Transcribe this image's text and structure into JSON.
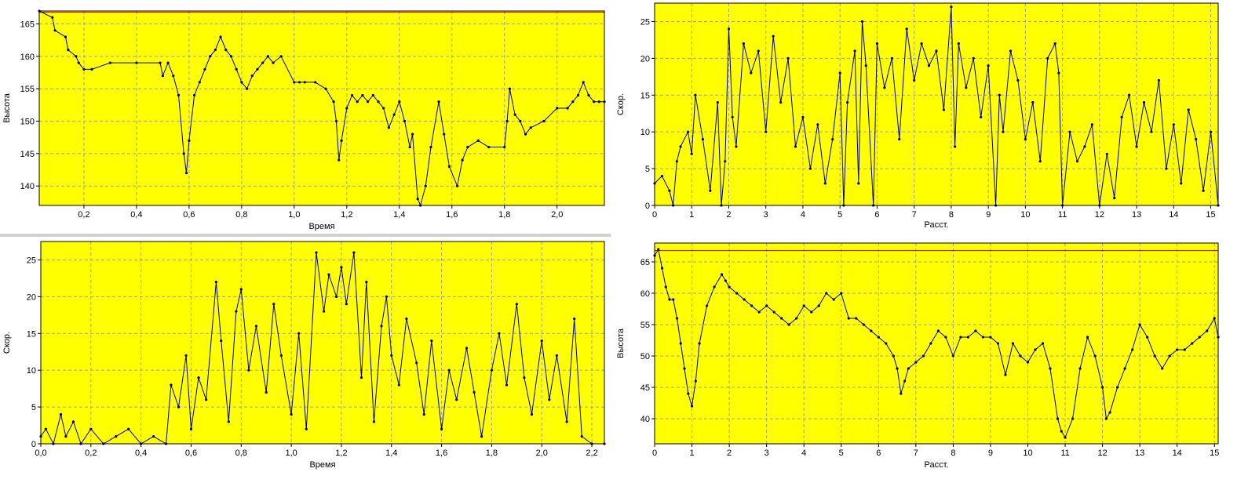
{
  "chart_data": [
    {
      "id": "c1",
      "type": "line",
      "xlabel": "Время",
      "ylabel": "Высота",
      "xlim": [
        0.03,
        2.18
      ],
      "ylim": [
        137,
        167
      ],
      "xticks": [
        "0,2",
        "0,4",
        "0,6",
        "0,8",
        "1,0",
        "1,2",
        "1,4",
        "1,6",
        "1,8",
        "2,0"
      ],
      "xtick_values": [
        0.2,
        0.4,
        0.6,
        0.8,
        1.0,
        1.2,
        1.4,
        1.6,
        1.8,
        2.0
      ],
      "yticks": [
        "140",
        "145",
        "150",
        "155",
        "160",
        "165"
      ],
      "ytick_values": [
        140,
        145,
        150,
        155,
        160,
        165
      ],
      "ref_line": 166.8,
      "grid": true,
      "series": [
        {
          "x": [
            0.03,
            0.08,
            0.09,
            0.13,
            0.14,
            0.17,
            0.18,
            0.2,
            0.23,
            0.3,
            0.4,
            0.49,
            0.5,
            0.52,
            0.54,
            0.56,
            0.58,
            0.59,
            0.6,
            0.62,
            0.64,
            0.66,
            0.68,
            0.7,
            0.72,
            0.74,
            0.76,
            0.78,
            0.8,
            0.82,
            0.84,
            0.86,
            0.88,
            0.9,
            0.92,
            0.95,
            1.0,
            1.02,
            1.04,
            1.08,
            1.12,
            1.15,
            1.16,
            1.17,
            1.18,
            1.2,
            1.22,
            1.24,
            1.26,
            1.28,
            1.3,
            1.32,
            1.34,
            1.36,
            1.38,
            1.4,
            1.42,
            1.44,
            1.45,
            1.47,
            1.48,
            1.5,
            1.52,
            1.55,
            1.57,
            1.59,
            1.62,
            1.64,
            1.66,
            1.7,
            1.74,
            1.8,
            1.81,
            1.82,
            1.84,
            1.86,
            1.88,
            1.9,
            1.95,
            2.0,
            2.04,
            2.06,
            2.08,
            2.1,
            2.12,
            2.14,
            2.16,
            2.18
          ],
          "y": [
            167,
            166,
            164,
            163,
            161,
            160,
            159,
            158,
            158,
            159,
            159,
            159,
            157,
            159,
            157,
            154,
            145,
            142,
            147,
            154,
            156,
            158,
            160,
            161,
            163,
            161,
            160,
            158,
            156,
            155,
            157,
            158,
            159,
            160,
            159,
            160,
            156,
            156,
            156,
            156,
            155,
            153,
            150,
            144,
            147,
            152,
            154,
            153,
            154,
            153,
            154,
            153,
            152,
            149,
            151,
            153,
            150,
            146,
            148,
            138,
            137,
            140,
            146,
            153,
            148,
            143,
            140,
            144,
            146,
            147,
            146,
            146,
            150,
            155,
            151,
            150,
            148,
            149,
            150,
            152,
            152,
            153,
            154,
            156,
            154,
            153,
            153,
            153
          ]
        }
      ]
    },
    {
      "id": "c2",
      "type": "line",
      "xlabel": "Расст.",
      "ylabel": "Скор.",
      "xlim": [
        0,
        15.2
      ],
      "ylim": [
        0,
        27.5
      ],
      "xticks": [
        "0",
        "1",
        "2",
        "3",
        "4",
        "5",
        "6",
        "7",
        "8",
        "9",
        "10",
        "11",
        "12",
        "13",
        "14",
        "15"
      ],
      "xtick_values": [
        0,
        1,
        2,
        3,
        4,
        5,
        6,
        7,
        8,
        9,
        10,
        11,
        12,
        13,
        14,
        15
      ],
      "yticks": [
        "0",
        "5",
        "10",
        "15",
        "20",
        "25"
      ],
      "ytick_values": [
        0,
        5,
        10,
        15,
        20,
        25
      ],
      "grid": true,
      "series": [
        {
          "x": [
            0,
            0.2,
            0.4,
            0.5,
            0.6,
            0.7,
            0.9,
            1.0,
            1.1,
            1.3,
            1.5,
            1.7,
            1.8,
            1.9,
            2.0,
            2.1,
            2.2,
            2.4,
            2.6,
            2.8,
            3.0,
            3.2,
            3.4,
            3.6,
            3.8,
            4.0,
            4.2,
            4.4,
            4.6,
            4.8,
            5.0,
            5.1,
            5.2,
            5.4,
            5.5,
            5.6,
            5.7,
            5.9,
            6.0,
            6.2,
            6.4,
            6.6,
            6.8,
            7.0,
            7.2,
            7.4,
            7.6,
            7.8,
            8.0,
            8.1,
            8.2,
            8.4,
            8.6,
            8.8,
            9.0,
            9.2,
            9.3,
            9.4,
            9.6,
            9.8,
            10.0,
            10.2,
            10.4,
            10.6,
            10.8,
            10.9,
            11.0,
            11.2,
            11.4,
            11.6,
            11.8,
            12.0,
            12.2,
            12.4,
            12.6,
            12.8,
            13.0,
            13.2,
            13.4,
            13.6,
            13.8,
            14.0,
            14.2,
            14.4,
            14.6,
            14.8,
            15.0,
            15.2
          ],
          "y": [
            3,
            4,
            2,
            0,
            6,
            8,
            10,
            7,
            15,
            9,
            2,
            14,
            0,
            6,
            24,
            12,
            8,
            22,
            18,
            21,
            10,
            23,
            14,
            20,
            8,
            12,
            5,
            11,
            3,
            9,
            18,
            0,
            14,
            21,
            3,
            25,
            19,
            0,
            22,
            16,
            20,
            9,
            24,
            17,
            22,
            19,
            21,
            13,
            27,
            8,
            22,
            16,
            20,
            12,
            19,
            0,
            15,
            10,
            21,
            17,
            9,
            14,
            6,
            20,
            22,
            18,
            0,
            10,
            6,
            8,
            11,
            0,
            7,
            1,
            12,
            15,
            8,
            14,
            10,
            17,
            5,
            11,
            3,
            13,
            9,
            2,
            10,
            0
          ]
        }
      ]
    },
    {
      "id": "c3",
      "type": "line",
      "xlabel": "Время",
      "ylabel": "Скор.",
      "xlim": [
        0,
        2.25
      ],
      "ylim": [
        0,
        27.5
      ],
      "xticks": [
        "0,0",
        "0,2",
        "0,4",
        "0,6",
        "0,8",
        "1,0",
        "1,2",
        "1,4",
        "1,6",
        "1,8",
        "2,0",
        "2,2"
      ],
      "xtick_values": [
        0,
        0.2,
        0.4,
        0.6,
        0.8,
        1.0,
        1.2,
        1.4,
        1.6,
        1.8,
        2.0,
        2.2
      ],
      "yticks": [
        "0",
        "5",
        "10",
        "15",
        "20",
        "25"
      ],
      "ytick_values": [
        0,
        5,
        10,
        15,
        20,
        25
      ],
      "grid": true,
      "series": [
        {
          "x": [
            0,
            0.02,
            0.05,
            0.08,
            0.1,
            0.13,
            0.16,
            0.2,
            0.25,
            0.3,
            0.35,
            0.4,
            0.45,
            0.5,
            0.52,
            0.55,
            0.58,
            0.6,
            0.63,
            0.66,
            0.7,
            0.72,
            0.75,
            0.78,
            0.8,
            0.83,
            0.86,
            0.9,
            0.93,
            0.96,
            1.0,
            1.03,
            1.06,
            1.1,
            1.13,
            1.15,
            1.18,
            1.2,
            1.22,
            1.25,
            1.28,
            1.3,
            1.33,
            1.36,
            1.38,
            1.4,
            1.43,
            1.46,
            1.5,
            1.53,
            1.56,
            1.6,
            1.63,
            1.66,
            1.7,
            1.73,
            1.76,
            1.8,
            1.83,
            1.86,
            1.9,
            1.93,
            1.96,
            2.0,
            2.03,
            2.06,
            2.1,
            2.13,
            2.16,
            2.2,
            2.25
          ],
          "y": [
            1,
            2,
            0,
            4,
            1,
            3,
            0,
            2,
            0,
            1,
            2,
            0,
            1,
            0,
            8,
            5,
            12,
            2,
            9,
            6,
            22,
            14,
            3,
            18,
            21,
            10,
            16,
            7,
            19,
            12,
            4,
            15,
            2,
            26,
            18,
            23,
            20,
            24,
            19,
            26,
            9,
            22,
            3,
            16,
            20,
            12,
            8,
            17,
            11,
            4,
            14,
            2,
            10,
            6,
            13,
            7,
            1,
            10,
            15,
            8,
            19,
            9,
            4,
            14,
            6,
            12,
            3,
            17,
            1,
            0,
            0
          ]
        }
      ]
    },
    {
      "id": "c4",
      "type": "line",
      "xlabel": "Расст.",
      "ylabel": "Высота",
      "xlim": [
        0,
        15.1
      ],
      "ylim": [
        36,
        68
      ],
      "xticks": [
        "0",
        "1",
        "2",
        "3",
        "4",
        "5",
        "6",
        "7",
        "8",
        "9",
        "10",
        "11",
        "12",
        "13",
        "14",
        "15"
      ],
      "xtick_values": [
        0,
        1,
        2,
        3,
        4,
        5,
        6,
        7,
        8,
        9,
        10,
        11,
        12,
        13,
        14,
        15
      ],
      "yticks": [
        "40",
        "45",
        "50",
        "55",
        "60",
        "65"
      ],
      "ytick_values": [
        40,
        45,
        50,
        55,
        60,
        65
      ],
      "ref_line": 66.8,
      "grid": true,
      "series": [
        {
          "x": [
            0,
            0.1,
            0.2,
            0.3,
            0.4,
            0.5,
            0.6,
            0.7,
            0.8,
            0.9,
            1.0,
            1.1,
            1.2,
            1.4,
            1.6,
            1.8,
            1.9,
            2.0,
            2.2,
            2.4,
            2.6,
            2.8,
            3.0,
            3.2,
            3.4,
            3.6,
            3.8,
            4.0,
            4.2,
            4.4,
            4.6,
            4.8,
            5.0,
            5.2,
            5.4,
            5.6,
            5.8,
            6.0,
            6.2,
            6.4,
            6.5,
            6.6,
            6.7,
            6.8,
            7.0,
            7.2,
            7.4,
            7.6,
            7.8,
            8.0,
            8.2,
            8.4,
            8.6,
            8.8,
            9.0,
            9.2,
            9.4,
            9.6,
            9.8,
            10.0,
            10.2,
            10.4,
            10.6,
            10.8,
            10.9,
            11.0,
            11.2,
            11.4,
            11.6,
            11.8,
            12.0,
            12.1,
            12.2,
            12.4,
            12.6,
            12.8,
            13.0,
            13.2,
            13.4,
            13.6,
            13.8,
            14.0,
            14.2,
            14.4,
            14.6,
            14.8,
            15.0,
            15.1
          ],
          "y": [
            66,
            67,
            64,
            61,
            59,
            59,
            56,
            52,
            48,
            44,
            42,
            46,
            52,
            58,
            61,
            63,
            62,
            61,
            60,
            59,
            58,
            57,
            58,
            57,
            56,
            55,
            56,
            58,
            57,
            58,
            60,
            59,
            60,
            56,
            56,
            55,
            54,
            53,
            52,
            50,
            48,
            44,
            46,
            48,
            49,
            50,
            52,
            54,
            53,
            50,
            53,
            53,
            54,
            53,
            53,
            52,
            47,
            52,
            50,
            49,
            51,
            52,
            48,
            40,
            38,
            37,
            40,
            48,
            53,
            50,
            45,
            40,
            41,
            45,
            48,
            51,
            55,
            53,
            50,
            48,
            50,
            51,
            51,
            52,
            53,
            54,
            56,
            53
          ]
        }
      ]
    }
  ]
}
